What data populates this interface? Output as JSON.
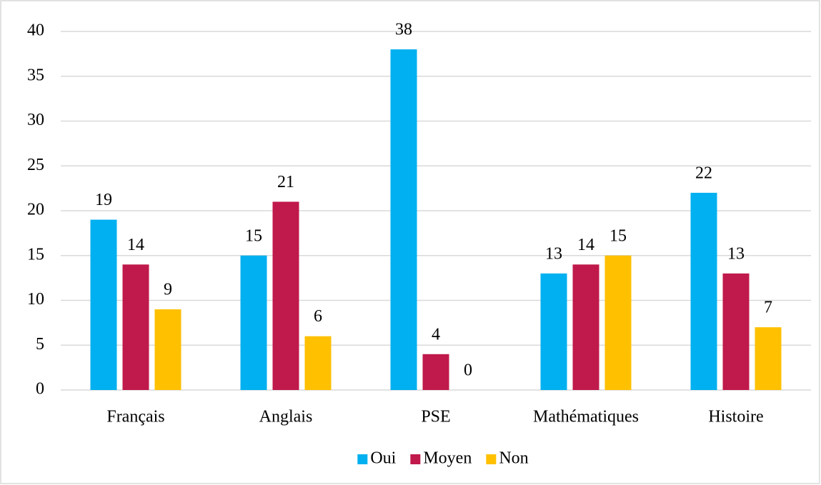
{
  "chart_data": {
    "type": "bar",
    "categories": [
      "Français",
      "Anglais",
      "PSE",
      "Mathématiques",
      "Histoire"
    ],
    "series": [
      {
        "name": "Oui",
        "color": "#00b0f0",
        "values": [
          19,
          15,
          38,
          13,
          22
        ]
      },
      {
        "name": "Moyen",
        "color": "#c0194b",
        "values": [
          14,
          21,
          4,
          14,
          13
        ]
      },
      {
        "name": "Non",
        "color": "#ffc000",
        "values": [
          9,
          6,
          0,
          15,
          7
        ]
      }
    ],
    "ylim": [
      0,
      40
    ],
    "yticks": [
      0,
      5,
      10,
      15,
      20,
      25,
      30,
      35,
      40
    ],
    "grid": true,
    "legend": "bottom"
  }
}
